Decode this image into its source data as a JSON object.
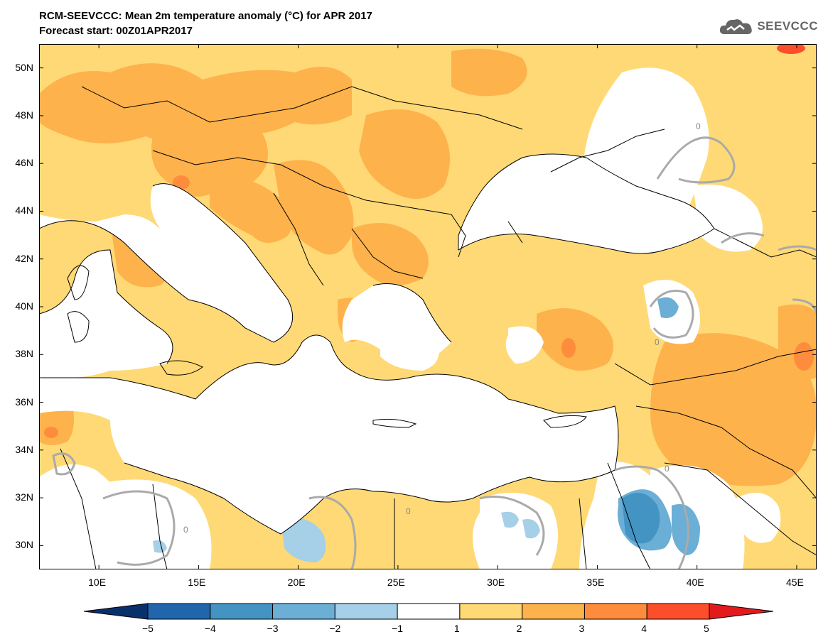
{
  "header": {
    "title": "RCM-SEEVCCC: Mean 2m temperature anomaly (°C) for APR 2017",
    "subtitle": "Forecast start: 00Z01APR2017"
  },
  "logo": {
    "text": "SEEVCCC",
    "icon": "cloud-icon"
  },
  "map": {
    "lon_min": 7,
    "lon_max": 46,
    "lat_min": 29,
    "lat_max": 51,
    "lat_ticks": [
      {
        "value": 50,
        "label": "50N"
      },
      {
        "value": 48,
        "label": "48N"
      },
      {
        "value": 46,
        "label": "46N"
      },
      {
        "value": 44,
        "label": "44N"
      },
      {
        "value": 42,
        "label": "42N"
      },
      {
        "value": 40,
        "label": "40N"
      },
      {
        "value": 38,
        "label": "38N"
      },
      {
        "value": 36,
        "label": "36N"
      },
      {
        "value": 34,
        "label": "34N"
      },
      {
        "value": 32,
        "label": "32N"
      },
      {
        "value": 30,
        "label": "30N"
      }
    ],
    "lon_ticks": [
      {
        "value": 10,
        "label": "10E"
      },
      {
        "value": 15,
        "label": "15E"
      },
      {
        "value": 20,
        "label": "20E"
      },
      {
        "value": 25,
        "label": "25E"
      },
      {
        "value": 30,
        "label": "30E"
      },
      {
        "value": 35,
        "label": "35E"
      },
      {
        "value": 40,
        "label": "40E"
      },
      {
        "value": 45,
        "label": "45E"
      }
    ],
    "contour_label": "0"
  },
  "colorbar": {
    "levels": [
      "−5",
      "−4",
      "−3",
      "−2",
      "−1",
      "1",
      "2",
      "3",
      "4",
      "5"
    ],
    "colors": [
      "#08306b",
      "#2166ac",
      "#4393c3",
      "#6baed6",
      "#a6cfe8",
      "#ffffff",
      "#fed976",
      "#feb24c",
      "#fd8d3c",
      "#fc4e2a",
      "#e31a1c"
    ]
  },
  "colors": {
    "sea": "#ffffff",
    "anomaly_1_2": "#fed976",
    "anomaly_2_3": "#feb24c",
    "anomaly_3_4": "#fd8d3c",
    "anomaly_4_5": "#fc4e2a",
    "anomaly_neg1_neg2": "#a6cfe8",
    "anomaly_neg2_neg3": "#6baed6"
  }
}
